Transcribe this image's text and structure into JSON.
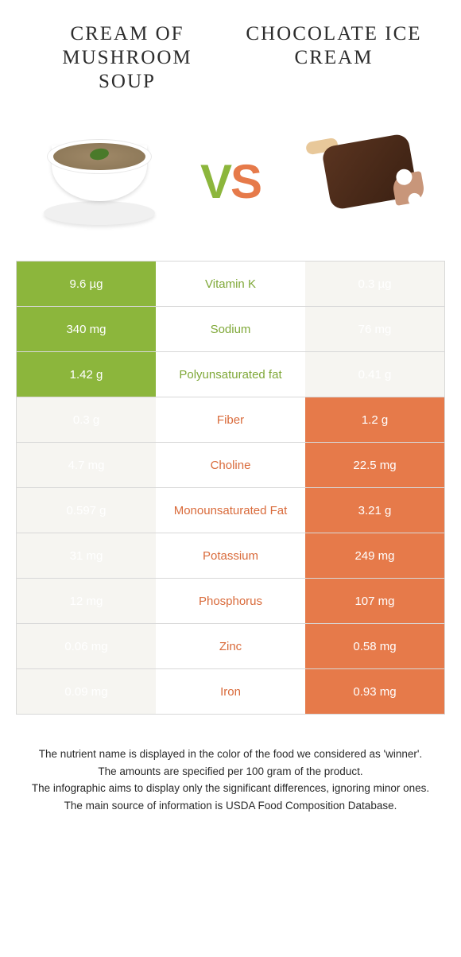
{
  "colors": {
    "green": "#8cb63c",
    "orange": "#e67a4a",
    "light_bg": "#f6f5f1",
    "text_green": "#7fa838",
    "text_orange": "#d96a3a",
    "body_text": "#333333"
  },
  "header": {
    "left_title": "Cream of Mushroom Soup",
    "right_title": "Chocolate Ice Cream"
  },
  "vs": {
    "v": "V",
    "s": "S"
  },
  "table": {
    "rows": [
      {
        "left": "9.6 µg",
        "label": "Vitamin K",
        "right": "0.3 µg",
        "winner": "left"
      },
      {
        "left": "340 mg",
        "label": "Sodium",
        "right": "76 mg",
        "winner": "left"
      },
      {
        "left": "1.42 g",
        "label": "Polyunsaturated fat",
        "right": "0.41 g",
        "winner": "left"
      },
      {
        "left": "0.3 g",
        "label": "Fiber",
        "right": "1.2 g",
        "winner": "right"
      },
      {
        "left": "4.7 mg",
        "label": "Choline",
        "right": "22.5 mg",
        "winner": "right"
      },
      {
        "left": "0.597 g",
        "label": "Monounsaturated Fat",
        "right": "3.21 g",
        "winner": "right"
      },
      {
        "left": "31 mg",
        "label": "Potassium",
        "right": "249 mg",
        "winner": "right"
      },
      {
        "left": "12 mg",
        "label": "Phosphorus",
        "right": "107 mg",
        "winner": "right"
      },
      {
        "left": "0.06 mg",
        "label": "Zinc",
        "right": "0.58 mg",
        "winner": "right"
      },
      {
        "left": "0.09 mg",
        "label": "Iron",
        "right": "0.93 mg",
        "winner": "right"
      }
    ],
    "left_color": "green",
    "right_color": "orange",
    "loser_bg": "light"
  },
  "footnotes": [
    "The nutrient name is displayed in the color of the food we considered as 'winner'.",
    "The amounts are specified per 100 gram of the product.",
    "The infographic aims to display only the significant differences, ignoring minor ones.",
    "The main source of information is USDA Food Composition Database."
  ]
}
